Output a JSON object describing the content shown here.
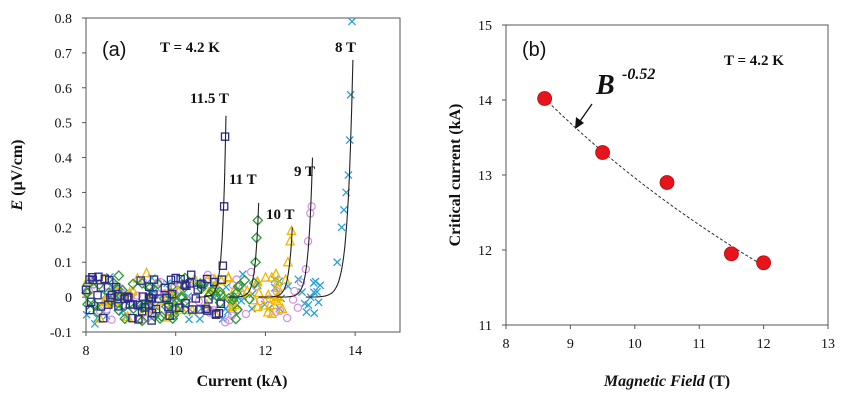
{
  "chart_data": [
    {
      "type": "scatter",
      "panel_label": "(a)",
      "annotation": "T = 4.2 K",
      "xlabel": "Current (kA)",
      "ylabel_var": "E",
      "ylabel_unit": "(µV/cm)",
      "xlim": [
        8,
        15
      ],
      "ylim": [
        -0.1,
        0.8
      ],
      "x_ticks": [
        "8",
        "10",
        "12",
        "14"
      ],
      "y_ticks": [
        "-0.1",
        "0",
        "0.1",
        "0.2",
        "0.3",
        "0.4",
        "0.5",
        "0.6",
        "0.7",
        "0.8"
      ],
      "grid": false,
      "legend": "none",
      "series": [
        {
          "label": "11.5 T",
          "marker": "square",
          "color": "#2b2b8a",
          "ic": 11.05,
          "xmax": 11.12,
          "fit_peak": 0.52,
          "top": [
            [
              11.05,
              0.09
            ],
            [
              11.08,
              0.26
            ],
            [
              11.1,
              0.46
            ]
          ]
        },
        {
          "label": "11 T",
          "marker": "diamond",
          "color": "#2a9a3a",
          "ic": 11.75,
          "xmax": 11.85,
          "fit_peak": 0.27,
          "top": [
            [
              11.75,
              0.04
            ],
            [
              11.78,
              0.1
            ],
            [
              11.8,
              0.17
            ],
            [
              11.83,
              0.22
            ]
          ]
        },
        {
          "label": "10 T",
          "marker": "triangle",
          "color": "#f2b800",
          "ic": 12.45,
          "xmax": 12.6,
          "fit_peak": 0.2,
          "top": [
            [
              12.45,
              0.05
            ],
            [
              12.5,
              0.1
            ],
            [
              12.55,
              0.16
            ],
            [
              12.58,
              0.19
            ]
          ]
        },
        {
          "label": "9 T",
          "marker": "circle",
          "color": "#d58ee3",
          "ic": 12.85,
          "xmax": 13.05,
          "fit_peak": 0.4,
          "top": [
            [
              12.9,
              0.08
            ],
            [
              12.95,
              0.16
            ],
            [
              13.0,
              0.24
            ],
            [
              13.03,
              0.26
            ]
          ]
        },
        {
          "label": "8 T",
          "marker": "x",
          "color": "#2aa0d8",
          "ic": 13.5,
          "xmax": 13.95,
          "fit_peak": 0.68,
          "top": [
            [
              13.6,
              0.1
            ],
            [
              13.7,
              0.2
            ],
            [
              13.75,
              0.25
            ],
            [
              13.8,
              0.3
            ],
            [
              13.85,
              0.35
            ],
            [
              13.88,
              0.45
            ],
            [
              13.9,
              0.58
            ],
            [
              13.93,
              0.79
            ]
          ]
        }
      ]
    },
    {
      "type": "scatter",
      "panel_label": "(b)",
      "annotation": "T = 4.2 K",
      "fit_label_base": "B",
      "fit_label_exp": "-0.52",
      "xlabel_var": "Magnetic Field",
      "xlabel_unit": "(T)",
      "ylabel": "Critical current (kA)",
      "xlim": [
        8,
        13
      ],
      "ylim": [
        11,
        15
      ],
      "x_ticks": [
        "8",
        "9",
        "10",
        "11",
        "12",
        "13"
      ],
      "y_ticks": [
        "11",
        "12",
        "13",
        "14",
        "15"
      ],
      "grid": false,
      "legend": "none",
      "points": {
        "x": [
          8.6,
          9.5,
          10.5,
          11.5,
          12.0
        ],
        "y": [
          14.02,
          13.3,
          12.9,
          11.95,
          11.83
        ],
        "color": "#e8141b"
      },
      "fit": {
        "x": [
          8.6,
          12.0
        ],
        "y": [
          14.02,
          11.82
        ],
        "style": "dashed"
      }
    }
  ]
}
